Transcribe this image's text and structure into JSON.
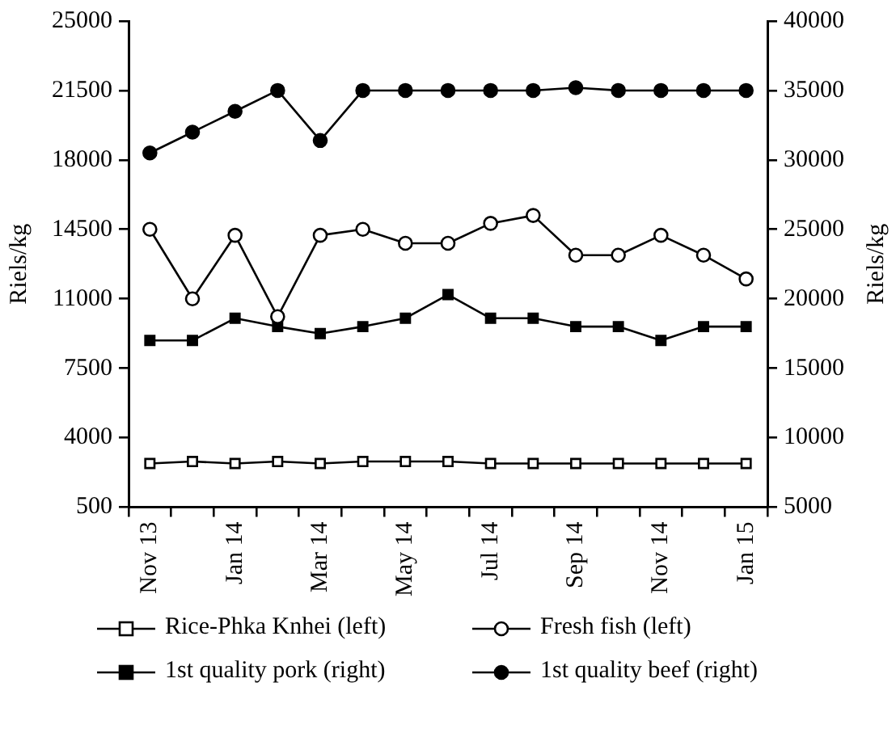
{
  "chart_data": {
    "type": "line",
    "categories": [
      "Nov 13",
      null,
      "Jan 14",
      null,
      "Mar 14",
      null,
      "May 14",
      null,
      "Jul 14",
      null,
      "Sep 14",
      null,
      "Nov 14",
      null,
      "Jan 15"
    ],
    "ylabel": "Riels/kg",
    "y2label": "Riels/kg",
    "ylim": [
      500,
      25000
    ],
    "yticks": [
      500,
      4000,
      7500,
      11000,
      14500,
      18000,
      21500,
      25000
    ],
    "y2lim": [
      5000,
      40000
    ],
    "y2ticks": [
      5000,
      10000,
      15000,
      20000,
      25000,
      30000,
      35000,
      40000
    ],
    "grid": false,
    "legend": "bottom",
    "series": [
      {
        "name": "Rice-Phka Knhei (left)",
        "color": "#000000",
        "marker": "square",
        "values": [
          2700,
          2800,
          2700,
          2800,
          2700,
          2800,
          2800,
          2800,
          2700,
          2700,
          2700,
          2700,
          2700,
          2700,
          2700
        ]
      },
      {
        "name": "Fresh fish (left)",
        "color": "#000000",
        "marker": "circle",
        "values": [
          14500,
          11000,
          14200,
          10100,
          14200,
          14500,
          13800,
          13800,
          14800,
          15200,
          13200,
          13200,
          14200,
          13200,
          12000
        ]
      },
      {
        "name": "1st quality pork (right)",
        "color": "#000000",
        "marker": "square",
        "axis": "y2",
        "values": [
          17000,
          17000,
          18600,
          18000,
          17500,
          18000,
          18600,
          20300,
          18600,
          18600,
          18000,
          18000,
          17000,
          18000,
          18000
        ]
      },
      {
        "name": "1st quality beef (right)",
        "color": "#000000",
        "marker": "circle",
        "axis": "y2",
        "values": [
          30500,
          32000,
          33500,
          35000,
          31400,
          35000,
          35000,
          35000,
          35000,
          35000,
          35200,
          35000,
          35000,
          35000,
          35000
        ]
      }
    ]
  }
}
